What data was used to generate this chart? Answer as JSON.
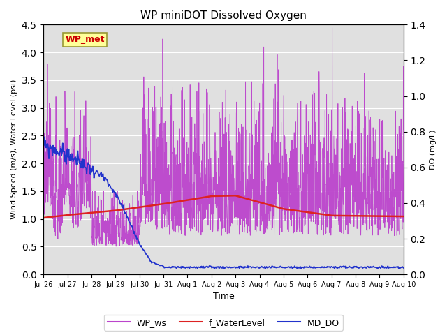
{
  "title": "WP miniDOT Dissolved Oxygen",
  "ylabel_left": "Wind Speed (m/s), Water Level (psi)",
  "ylabel_right": "DO (mg/L)",
  "xlabel": "Time",
  "ylim_left": [
    0.0,
    4.5
  ],
  "ylim_right": [
    0.0,
    1.4
  ],
  "background_color": "#ffffff",
  "plot_bg_color": "#e0e0e0",
  "annotation_text": "WP_met",
  "annotation_box_color": "#ffff99",
  "annotation_text_color": "#cc0000",
  "annotation_edge_color": "#999933",
  "legend_labels": [
    "WP_ws",
    "f_WaterLevel",
    "MD_DO"
  ],
  "wp_ws_color": "#bb44cc",
  "f_wl_color": "#dd2222",
  "md_do_color": "#2233cc",
  "x_tick_labels": [
    "Jul 26",
    "Jul 27",
    "Jul 28",
    "Jul 29",
    "Jul 30",
    "Jul 31",
    "Aug 1",
    "Aug 2",
    "Aug 3",
    "Aug 4",
    "Aug 5",
    "Aug 6",
    "Aug 7",
    "Aug 8",
    "Aug 9",
    "Aug 10"
  ],
  "figsize": [
    6.4,
    4.8
  ],
  "dpi": 100
}
